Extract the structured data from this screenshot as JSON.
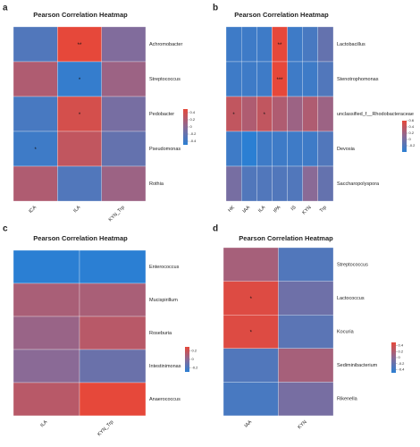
{
  "chart_data": [
    {
      "type": "heatmap",
      "panel": "a",
      "title": "Pearson Correlation Heatmap",
      "columns": [
        "ICA",
        "ILA",
        "KYN_Trp"
      ],
      "rows": [
        "Achromobacter",
        "Streptococcus",
        "Pedobacter",
        "Pseudomonas",
        "Rothia"
      ],
      "values": [
        [
          -0.3,
          0.5,
          -0.05
        ],
        [
          0.2,
          -0.45,
          0.1
        ],
        [
          -0.35,
          0.4,
          -0.1
        ],
        [
          -0.4,
          0.3,
          -0.2
        ],
        [
          0.2,
          -0.3,
          0.1
        ]
      ],
      "annotations": [
        {
          "row": "Achromobacter",
          "column": "ILA",
          "text": "**"
        },
        {
          "row": "Streptococcus",
          "column": "ILA",
          "text": "*"
        },
        {
          "row": "Pedobacter",
          "column": "ILA",
          "text": "*"
        },
        {
          "row": "Pseudomonas",
          "column": "ICA",
          "text": "*"
        }
      ],
      "colorscale": [
        "#2b7fd3",
        "#8a6a96",
        "#e6483a"
      ],
      "zlim": [
        -0.5,
        0.5
      ],
      "zticks": [
        -0.4,
        -0.2,
        0,
        0.2,
        0.4
      ]
    },
    {
      "type": "heatmap",
      "panel": "b",
      "title": "Pearson Correlation Heatmap",
      "columns": [
        "HK",
        "IAA",
        "ILA",
        "IPA",
        "IS",
        "KYN",
        "Trp"
      ],
      "rows": [
        "Lactobacillus",
        "Stenotrophomonas",
        "unclassified_f__Rhodobacteraceae",
        "Devosia",
        "Saccharopolyspora"
      ],
      "values": [
        [
          -0.3,
          -0.3,
          -0.3,
          0.6,
          -0.3,
          -0.25,
          -0.1
        ],
        [
          -0.3,
          -0.3,
          -0.3,
          0.6,
          -0.3,
          -0.3,
          -0.2
        ],
        [
          0.4,
          0.3,
          0.4,
          0.3,
          0.2,
          0.3,
          0.2
        ],
        [
          -0.3,
          -0.4,
          -0.3,
          -0.3,
          -0.3,
          -0.3,
          -0.2
        ],
        [
          0,
          -0.2,
          -0.2,
          -0.2,
          -0.2,
          0.1,
          -0.1
        ]
      ],
      "annotations": [
        {
          "row": "Lactobacillus",
          "column": "IPA",
          "text": "**"
        },
        {
          "row": "Stenotrophomonas",
          "column": "IPA",
          "text": "***"
        },
        {
          "row": "unclassified_f__Rhodobacteraceae",
          "column": "HK",
          "text": "*"
        },
        {
          "row": "unclassified_f__Rhodobacteraceae",
          "column": "ILA",
          "text": "*"
        }
      ],
      "colorscale": [
        "#2b7fd3",
        "#8a6a96",
        "#e6483a"
      ],
      "zlim": [
        -0.4,
        0.6
      ],
      "zticks": [
        -0.2,
        0,
        0.2,
        0.4,
        0.6
      ]
    },
    {
      "type": "heatmap",
      "panel": "c",
      "title": "Pearson Correlation Heatmap",
      "columns": [
        "ILA",
        "KYN_Trp"
      ],
      "rows": [
        "Enterococcus",
        "Mucispirillum",
        "Roseburia",
        "Intestinimonas",
        "Anaerococcus"
      ],
      "values": [
        [
          -0.3,
          -0.3
        ],
        [
          0.1,
          0.1
        ],
        [
          0.05,
          0.15
        ],
        [
          0,
          -0.1
        ],
        [
          0.15,
          0.3
        ]
      ],
      "colorscale": [
        "#2b7fd3",
        "#8a6a96",
        "#e6483a"
      ],
      "zlim": [
        -0.3,
        0.3
      ],
      "zticks": [
        -0.2,
        0,
        0.2
      ]
    },
    {
      "type": "heatmap",
      "panel": "d",
      "title": "Pearson Correlation Heatmap",
      "columns": [
        "IAA",
        "KYN"
      ],
      "rows": [
        "Streptococcus",
        "Lactococcus",
        "Kocuria",
        "Sediminibacterium",
        "Rikenella"
      ],
      "values": [
        [
          0.15,
          -0.3
        ],
        [
          0.45,
          -0.15
        ],
        [
          0.45,
          -0.25
        ],
        [
          -0.3,
          0.15
        ],
        [
          -0.35,
          -0.1
        ]
      ],
      "annotations": [
        {
          "row": "Lactococcus",
          "column": "IAA",
          "text": "*"
        },
        {
          "row": "Kocuria",
          "column": "IAA",
          "text": "*"
        }
      ],
      "colorscale": [
        "#2b7fd3",
        "#8a6a96",
        "#e6483a"
      ],
      "zlim": [
        -0.5,
        0.5
      ],
      "zticks": [
        -0.4,
        -0.2,
        0,
        0.2,
        0.4
      ]
    }
  ]
}
